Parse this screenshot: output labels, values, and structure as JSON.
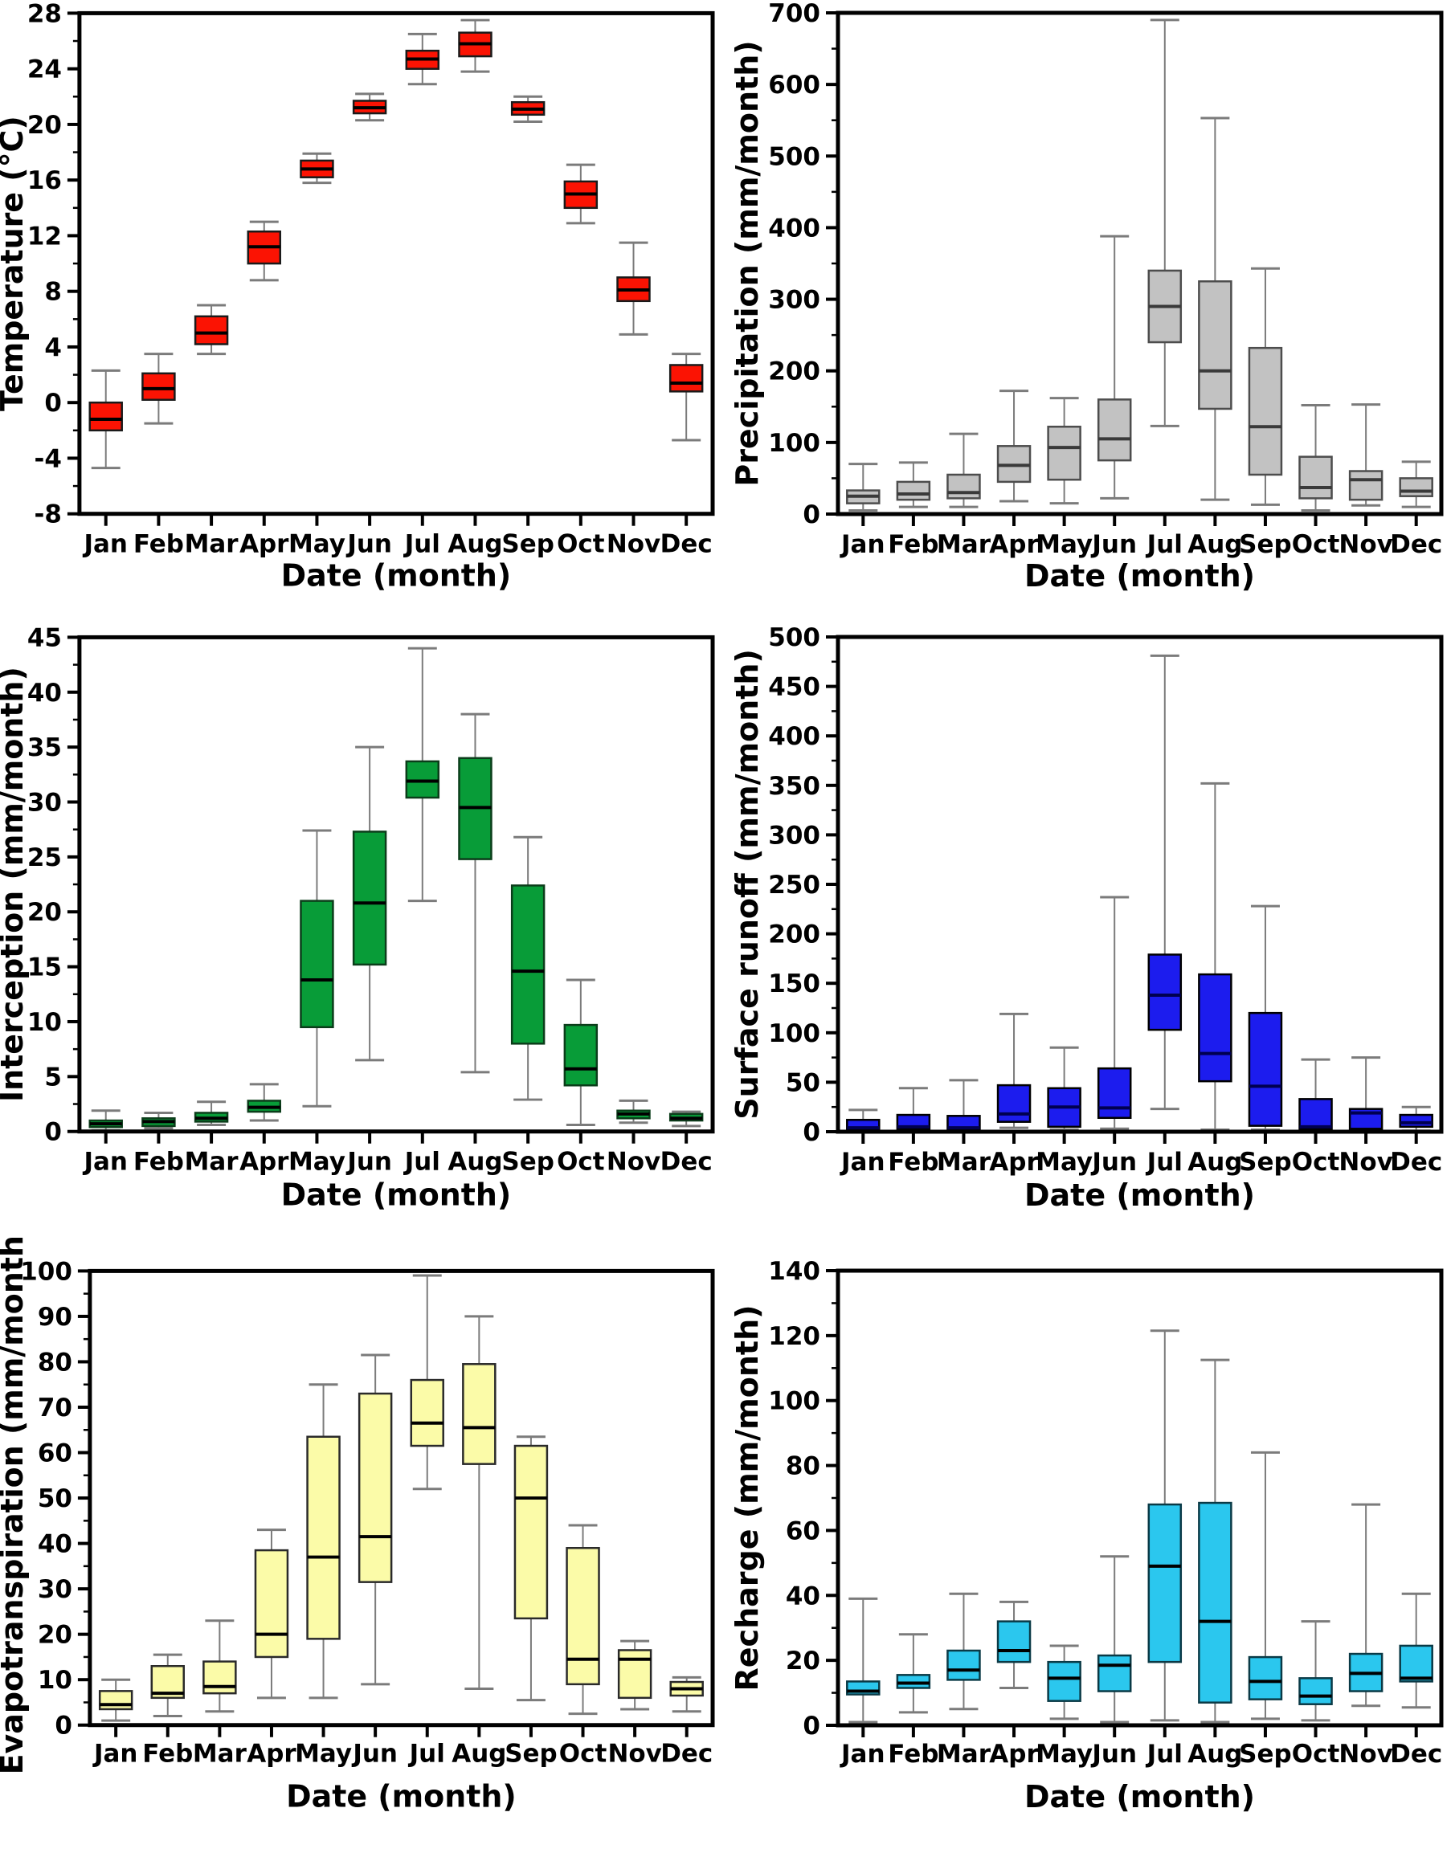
{
  "figure": {
    "panels": [
      "temperature",
      "precipitation",
      "interception",
      "surface-runoff",
      "evapotranspiration",
      "recharge"
    ],
    "background": "#ffffff",
    "frame_color": "#000000",
    "whisker_color": "#7b7b7b"
  },
  "chart_data": [
    {
      "type": "boxplot",
      "id": "temperature",
      "title": "",
      "ylabel": "Temperature (°C)",
      "xlabel": "Date (month)",
      "categories": [
        "Jan",
        "Feb",
        "Mar",
        "Apr",
        "May",
        "Jun",
        "Jul",
        "Aug",
        "Sep",
        "Oct",
        "Nov",
        "Dec"
      ],
      "ylim": [
        -8,
        28
      ],
      "ytick_major": 4,
      "ytick_minor": 2,
      "grid": false,
      "legend": "none",
      "colors": {
        "box_fill": "#fb1303",
        "box_border": "#1a1a1a",
        "median": "#000000",
        "whisker": "#7b7b7b"
      },
      "boxes": [
        {
          "category": "Jan",
          "low": -4.7,
          "q1": -2.0,
          "median": -1.2,
          "q3": 0.0,
          "high": 2.3
        },
        {
          "category": "Feb",
          "low": -1.5,
          "q1": 0.2,
          "median": 1.0,
          "q3": 2.1,
          "high": 3.5
        },
        {
          "category": "Mar",
          "low": 3.5,
          "q1": 4.2,
          "median": 5.0,
          "q3": 6.2,
          "high": 7.0
        },
        {
          "category": "Apr",
          "low": 8.8,
          "q1": 10.0,
          "median": 11.2,
          "q3": 12.3,
          "high": 13.0
        },
        {
          "category": "May",
          "low": 15.8,
          "q1": 16.2,
          "median": 16.8,
          "q3": 17.4,
          "high": 17.9
        },
        {
          "category": "Jun",
          "low": 20.3,
          "q1": 20.8,
          "median": 21.2,
          "q3": 21.7,
          "high": 22.2
        },
        {
          "category": "Jul",
          "low": 22.9,
          "q1": 24.0,
          "median": 24.7,
          "q3": 25.3,
          "high": 26.5
        },
        {
          "category": "Aug",
          "low": 23.8,
          "q1": 24.9,
          "median": 25.8,
          "q3": 26.6,
          "high": 27.5
        },
        {
          "category": "Sep",
          "low": 20.2,
          "q1": 20.7,
          "median": 21.1,
          "q3": 21.6,
          "high": 22.0
        },
        {
          "category": "Oct",
          "low": 12.9,
          "q1": 14.0,
          "median": 15.0,
          "q3": 15.9,
          "high": 17.1
        },
        {
          "category": "Nov",
          "low": 4.9,
          "q1": 7.3,
          "median": 8.1,
          "q3": 9.0,
          "high": 11.5
        },
        {
          "category": "Dec",
          "low": -2.7,
          "q1": 0.8,
          "median": 1.4,
          "q3": 2.7,
          "high": 3.5
        }
      ]
    },
    {
      "type": "boxplot",
      "id": "precipitation",
      "title": "",
      "ylabel": "Precipitation (mm/month)",
      "xlabel": "Date (month)",
      "categories": [
        "Jan",
        "Feb",
        "Mar",
        "Apr",
        "May",
        "Jun",
        "Jul",
        "Aug",
        "Sep",
        "Oct",
        "Nov",
        "Dec"
      ],
      "ylim": [
        0,
        700
      ],
      "ytick_major": 100,
      "ytick_minor": 50,
      "grid": false,
      "legend": "none",
      "colors": {
        "box_fill": "#c2c2c2",
        "box_border": "#4d4d4d",
        "median": "#3a3a3a",
        "whisker": "#7b7b7b"
      },
      "boxes": [
        {
          "category": "Jan",
          "low": 5,
          "q1": 15,
          "median": 25,
          "q3": 33,
          "high": 70
        },
        {
          "category": "Feb",
          "low": 10,
          "q1": 20,
          "median": 28,
          "q3": 45,
          "high": 72
        },
        {
          "category": "Mar",
          "low": 10,
          "q1": 22,
          "median": 30,
          "q3": 55,
          "high": 112
        },
        {
          "category": "Apr",
          "low": 18,
          "q1": 45,
          "median": 68,
          "q3": 95,
          "high": 172
        },
        {
          "category": "May",
          "low": 15,
          "q1": 48,
          "median": 93,
          "q3": 122,
          "high": 162
        },
        {
          "category": "Jun",
          "low": 22,
          "q1": 75,
          "median": 105,
          "q3": 160,
          "high": 388
        },
        {
          "category": "Jul",
          "low": 123,
          "q1": 240,
          "median": 290,
          "q3": 340,
          "high": 690
        },
        {
          "category": "Aug",
          "low": 20,
          "q1": 147,
          "median": 200,
          "q3": 325,
          "high": 553
        },
        {
          "category": "Sep",
          "low": 13,
          "q1": 55,
          "median": 122,
          "q3": 232,
          "high": 343
        },
        {
          "category": "Oct",
          "low": 5,
          "q1": 22,
          "median": 37,
          "q3": 80,
          "high": 152
        },
        {
          "category": "Nov",
          "low": 12,
          "q1": 20,
          "median": 48,
          "q3": 60,
          "high": 153
        },
        {
          "category": "Dec",
          "low": 10,
          "q1": 25,
          "median": 32,
          "q3": 50,
          "high": 73
        }
      ]
    },
    {
      "type": "boxplot",
      "id": "interception",
      "title": "",
      "ylabel": "Interception (mm/month)",
      "xlabel": "Date (month)",
      "categories": [
        "Jan",
        "Feb",
        "Mar",
        "Apr",
        "May",
        "Jun",
        "Jul",
        "Aug",
        "Sep",
        "Oct",
        "Nov",
        "Dec"
      ],
      "ylim": [
        0,
        45
      ],
      "ytick_major": 5,
      "ytick_minor": 2.5,
      "grid": false,
      "legend": "none",
      "colors": {
        "box_fill": "#089c38",
        "box_border": "#0b3d1a",
        "median": "#000000",
        "whisker": "#7b7b7b"
      },
      "boxes": [
        {
          "category": "Jan",
          "low": 0.1,
          "q1": 0.4,
          "median": 0.7,
          "q3": 1.0,
          "high": 1.9
        },
        {
          "category": "Feb",
          "low": 0.3,
          "q1": 0.5,
          "median": 0.9,
          "q3": 1.2,
          "high": 1.7
        },
        {
          "category": "Mar",
          "low": 0.6,
          "q1": 0.9,
          "median": 1.2,
          "q3": 1.7,
          "high": 2.7
        },
        {
          "category": "Apr",
          "low": 1.0,
          "q1": 1.8,
          "median": 2.2,
          "q3": 2.8,
          "high": 4.3
        },
        {
          "category": "May",
          "low": 2.3,
          "q1": 9.5,
          "median": 13.8,
          "q3": 21.0,
          "high": 27.4
        },
        {
          "category": "Jun",
          "low": 6.5,
          "q1": 15.2,
          "median": 20.8,
          "q3": 27.3,
          "high": 35.0
        },
        {
          "category": "Jul",
          "low": 21.0,
          "q1": 30.4,
          "median": 31.9,
          "q3": 33.7,
          "high": 44.0
        },
        {
          "category": "Aug",
          "low": 5.4,
          "q1": 24.8,
          "median": 29.5,
          "q3": 34.0,
          "high": 38.0
        },
        {
          "category": "Sep",
          "low": 2.9,
          "q1": 8.0,
          "median": 14.6,
          "q3": 22.4,
          "high": 26.8
        },
        {
          "category": "Oct",
          "low": 0.6,
          "q1": 4.2,
          "median": 5.7,
          "q3": 9.7,
          "high": 13.8
        },
        {
          "category": "Nov",
          "low": 0.8,
          "q1": 1.2,
          "median": 1.6,
          "q3": 1.9,
          "high": 2.8
        },
        {
          "category": "Dec",
          "low": 0.5,
          "q1": 1.0,
          "median": 1.2,
          "q3": 1.6,
          "high": 1.8
        }
      ]
    },
    {
      "type": "boxplot",
      "id": "surface-runoff",
      "title": "",
      "ylabel": "Surface runoff (mm/month)",
      "xlabel": "Date (month)",
      "categories": [
        "Jan",
        "Feb",
        "Mar",
        "Apr",
        "May",
        "Jun",
        "Jul",
        "Aug",
        "Sep",
        "Oct",
        "Nov",
        "Dec"
      ],
      "ylim": [
        0,
        500
      ],
      "ytick_major": 50,
      "ytick_minor": 25,
      "grid": false,
      "legend": "none",
      "colors": {
        "box_fill": "#1c1cee",
        "box_border": "#000000",
        "median": "#000050",
        "whisker": "#7b7b7b"
      },
      "boxes": [
        {
          "category": "Jan",
          "low": 1,
          "q1": 2,
          "median": 4,
          "q3": 12,
          "high": 22
        },
        {
          "category": "Feb",
          "low": 1,
          "q1": 3,
          "median": 5,
          "q3": 17,
          "high": 44
        },
        {
          "category": "Mar",
          "low": 1,
          "q1": 2,
          "median": 4,
          "q3": 16,
          "high": 52
        },
        {
          "category": "Apr",
          "low": 4,
          "q1": 10,
          "median": 18,
          "q3": 47,
          "high": 119
        },
        {
          "category": "May",
          "low": 2,
          "q1": 5,
          "median": 25,
          "q3": 44,
          "high": 85
        },
        {
          "category": "Jun",
          "low": 3,
          "q1": 14,
          "median": 24,
          "q3": 64,
          "high": 237
        },
        {
          "category": "Jul",
          "low": 23,
          "q1": 103,
          "median": 138,
          "q3": 179,
          "high": 481
        },
        {
          "category": "Aug",
          "low": 2,
          "q1": 51,
          "median": 79,
          "q3": 159,
          "high": 352
        },
        {
          "category": "Sep",
          "low": 2,
          "q1": 6,
          "median": 46,
          "q3": 120,
          "high": 228
        },
        {
          "category": "Oct",
          "low": 1,
          "q1": 3,
          "median": 5,
          "q3": 33,
          "high": 73
        },
        {
          "category": "Nov",
          "low": 2,
          "q1": 3,
          "median": 19,
          "q3": 23,
          "high": 75
        },
        {
          "category": "Dec",
          "low": 1,
          "q1": 5,
          "median": 9,
          "q3": 17,
          "high": 25
        }
      ]
    },
    {
      "type": "boxplot",
      "id": "evapotranspiration",
      "title": "",
      "ylabel": "Evapotranspiration (mm/month)",
      "xlabel": "Date (month)",
      "categories": [
        "Jan",
        "Feb",
        "Mar",
        "Apr",
        "May",
        "Jun",
        "Jul",
        "Aug",
        "Sep",
        "Oct",
        "Nov",
        "Dec"
      ],
      "ylim": [
        0,
        100
      ],
      "ytick_major": 10,
      "ytick_minor": 5,
      "grid": false,
      "legend": "none",
      "colors": {
        "box_fill": "#fbfba8",
        "box_border": "#2a2a2a",
        "median": "#000000",
        "whisker": "#7b7b7b"
      },
      "boxes": [
        {
          "category": "Jan",
          "low": 1.0,
          "q1": 3.5,
          "median": 4.5,
          "q3": 7.5,
          "high": 10.0
        },
        {
          "category": "Feb",
          "low": 2.0,
          "q1": 6.0,
          "median": 7.0,
          "q3": 13.0,
          "high": 15.5
        },
        {
          "category": "Mar",
          "low": 3.0,
          "q1": 7.0,
          "median": 8.5,
          "q3": 14.0,
          "high": 23.0
        },
        {
          "category": "Apr",
          "low": 6.0,
          "q1": 15.0,
          "median": 20.0,
          "q3": 38.5,
          "high": 43.0
        },
        {
          "category": "May",
          "low": 6.0,
          "q1": 19.0,
          "median": 37.0,
          "q3": 63.5,
          "high": 75.0
        },
        {
          "category": "Jun",
          "low": 9.0,
          "q1": 31.5,
          "median": 41.5,
          "q3": 73.0,
          "high": 81.5
        },
        {
          "category": "Jul",
          "low": 52.0,
          "q1": 61.5,
          "median": 66.5,
          "q3": 76.0,
          "high": 99.0
        },
        {
          "category": "Aug",
          "low": 8.0,
          "q1": 57.5,
          "median": 65.5,
          "q3": 79.5,
          "high": 90.0
        },
        {
          "category": "Sep",
          "low": 5.5,
          "q1": 23.5,
          "median": 50.0,
          "q3": 61.5,
          "high": 63.5
        },
        {
          "category": "Oct",
          "low": 2.5,
          "q1": 9.0,
          "median": 14.5,
          "q3": 39.0,
          "high": 44.0
        },
        {
          "category": "Nov",
          "low": 3.5,
          "q1": 6.0,
          "median": 14.5,
          "q3": 16.5,
          "high": 18.5
        },
        {
          "category": "Dec",
          "low": 3.0,
          "q1": 6.5,
          "median": 8.0,
          "q3": 9.5,
          "high": 10.5
        }
      ]
    },
    {
      "type": "boxplot",
      "id": "recharge",
      "title": "",
      "ylabel": "Recharge (mm/month)",
      "xlabel": "Date (month)",
      "categories": [
        "Jan",
        "Feb",
        "Mar",
        "Apr",
        "May",
        "Jun",
        "Jul",
        "Aug",
        "Sep",
        "Oct",
        "Nov",
        "Dec"
      ],
      "ylim": [
        0,
        140
      ],
      "ytick_major": 20,
      "ytick_minor": 10,
      "grid": false,
      "legend": "none",
      "colors": {
        "box_fill": "#2bc7ee",
        "box_border": "#0a3a46",
        "median": "#000000",
        "whisker": "#7b7b7b"
      },
      "boxes": [
        {
          "category": "Jan",
          "low": 1.0,
          "q1": 9.5,
          "median": 10.5,
          "q3": 13.5,
          "high": 39.0
        },
        {
          "category": "Feb",
          "low": 4.0,
          "q1": 11.5,
          "median": 13.0,
          "q3": 15.5,
          "high": 28.0
        },
        {
          "category": "Mar",
          "low": 5.0,
          "q1": 14.0,
          "median": 17.0,
          "q3": 23.0,
          "high": 40.5
        },
        {
          "category": "Apr",
          "low": 11.5,
          "q1": 19.5,
          "median": 23.0,
          "q3": 32.0,
          "high": 38.0
        },
        {
          "category": "May",
          "low": 2.0,
          "q1": 7.5,
          "median": 14.5,
          "q3": 19.5,
          "high": 24.5
        },
        {
          "category": "Jun",
          "low": 1.0,
          "q1": 10.5,
          "median": 18.5,
          "q3": 21.5,
          "high": 52.0
        },
        {
          "category": "Jul",
          "low": 1.5,
          "q1": 19.5,
          "median": 49.0,
          "q3": 68.0,
          "high": 121.5
        },
        {
          "category": "Aug",
          "low": 1.0,
          "q1": 7.0,
          "median": 32.0,
          "q3": 68.5,
          "high": 112.5
        },
        {
          "category": "Sep",
          "low": 2.0,
          "q1": 8.0,
          "median": 13.5,
          "q3": 21.0,
          "high": 84.0
        },
        {
          "category": "Oct",
          "low": 1.5,
          "q1": 6.5,
          "median": 9.0,
          "q3": 14.5,
          "high": 32.0
        },
        {
          "category": "Nov",
          "low": 6.0,
          "q1": 10.5,
          "median": 16.0,
          "q3": 22.0,
          "high": 68.0
        },
        {
          "category": "Dec",
          "low": 5.5,
          "q1": 13.5,
          "median": 14.5,
          "q3": 24.5,
          "high": 40.5
        }
      ]
    }
  ]
}
